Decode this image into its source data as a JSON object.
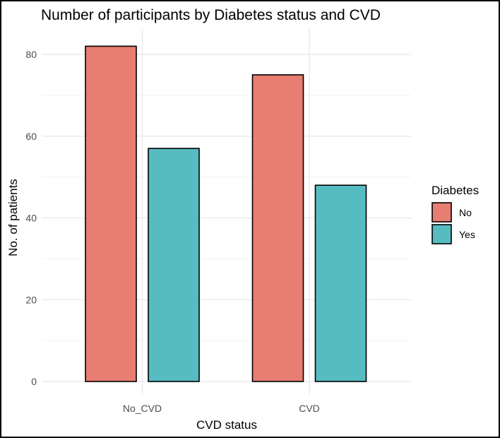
{
  "chart_data": {
    "type": "bar",
    "title": "Number of participants by Diabetes status and CVD",
    "xlabel": "CVD status",
    "ylabel": "No. of patients",
    "categories": [
      "No_CVD",
      "CVD"
    ],
    "series": [
      {
        "name": "No",
        "values": [
          82,
          75
        ],
        "color": "#E87D72"
      },
      {
        "name": "Yes",
        "values": [
          57,
          48
        ],
        "color": "#56BCC2"
      }
    ],
    "ylim": [
      0,
      87
    ],
    "yticks": [
      "0",
      "20",
      "40",
      "60",
      "80"
    ],
    "legend": {
      "title": "Diabetes",
      "position": "right"
    },
    "grid": true,
    "colors": {
      "bar_outline": "#000000",
      "grid_major": "#EBEBEB",
      "grid_minor": "#F2F2F2"
    }
  }
}
